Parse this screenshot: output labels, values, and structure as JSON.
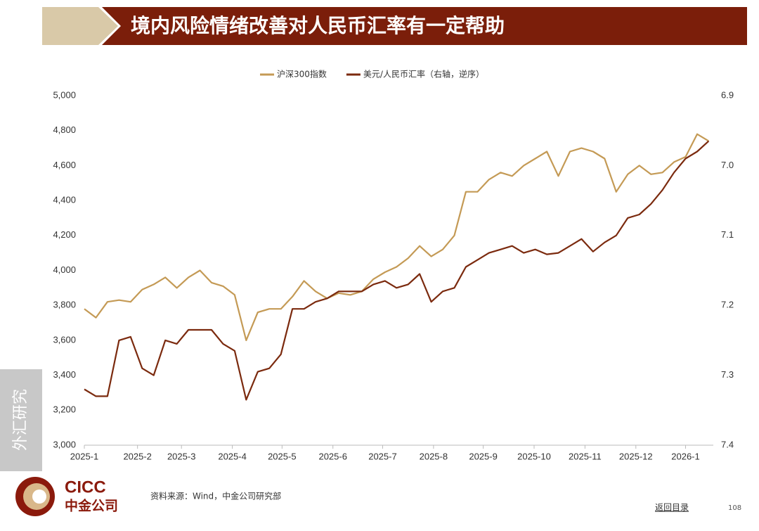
{
  "header": {
    "title": "境内风险情绪改善对人民币汇率有一定帮助"
  },
  "sidebar": {
    "label": "外汇研究"
  },
  "footer": {
    "logo_en": "CICC",
    "logo_cn": "中金公司",
    "source": "资料来源：Wind，中金公司研究部",
    "back_link": "返回目录",
    "page_number": "108"
  },
  "chart_data": {
    "type": "line",
    "xlim": [
      0,
      54.4
    ],
    "xticks": [
      {
        "value": 0,
        "label": "2025-1"
      },
      {
        "value": 4.6,
        "label": "2025-2"
      },
      {
        "value": 8.4,
        "label": "2025-3"
      },
      {
        "value": 12.8,
        "label": "2025-4"
      },
      {
        "value": 17.1,
        "label": "2025-5"
      },
      {
        "value": 21.5,
        "label": "2025-6"
      },
      {
        "value": 25.8,
        "label": "2025-7"
      },
      {
        "value": 30.2,
        "label": "2025-8"
      },
      {
        "value": 34.5,
        "label": "2025-9"
      },
      {
        "value": 38.9,
        "label": "2025-10"
      },
      {
        "value": 43.3,
        "label": "2025-11"
      },
      {
        "value": 47.7,
        "label": "2025-12"
      },
      {
        "value": 52,
        "label": "2026-1"
      }
    ],
    "ylim": [
      3000,
      5000
    ],
    "yticks": [
      {
        "value": 3000,
        "label": "3,000"
      },
      {
        "value": 3200,
        "label": "3,200"
      },
      {
        "value": 3400,
        "label": "3,400"
      },
      {
        "value": 3600,
        "label": "3,600"
      },
      {
        "value": 3800,
        "label": "3,800"
      },
      {
        "value": 4000,
        "label": "4,000"
      },
      {
        "value": 4200,
        "label": "4,200"
      },
      {
        "value": 4400,
        "label": "4,400"
      },
      {
        "value": 4600,
        "label": "4,600"
      },
      {
        "value": 4800,
        "label": "4,800"
      },
      {
        "value": 5000,
        "label": "5,000"
      }
    ],
    "y2lim": [
      7.4,
      6.9
    ],
    "y2ticks": [
      7.4,
      7.3,
      7.2,
      7.1,
      {
        "value": 7,
        "label": "7.0"
      },
      6.9
    ],
    "grid": false,
    "legend": "top",
    "series": [
      {
        "name": "沪深300指数",
        "color": "#c49a55",
        "values": [
          3780,
          3730,
          3820,
          3830,
          3820,
          3890,
          3920,
          3960,
          3900,
          3960,
          4000,
          3930,
          3910,
          3860,
          3600,
          3760,
          3780,
          3780,
          3850,
          3940,
          3880,
          3840,
          3870,
          3860,
          3880,
          3950,
          3990,
          4020,
          4070,
          4140,
          4080,
          4120,
          4200,
          4450,
          4450,
          4520,
          4560,
          4540,
          4600,
          4640,
          4680,
          4540,
          4680,
          4700,
          4680,
          4640,
          4450,
          4550,
          4600,
          4550,
          4560,
          4620,
          4650,
          4780,
          4740
        ]
      },
      {
        "name": "美元/人民币汇率（右轴，逆序）",
        "color": "#7b2a0e",
        "axis": "y2",
        "values": [
          7.32,
          7.33,
          7.33,
          7.25,
          7.245,
          7.29,
          7.3,
          7.25,
          7.255,
          7.235,
          7.235,
          7.235,
          7.255,
          7.265,
          7.335,
          7.295,
          7.29,
          7.27,
          7.205,
          7.205,
          7.195,
          7.19,
          7.18,
          7.18,
          7.18,
          7.17,
          7.165,
          7.175,
          7.17,
          7.155,
          7.195,
          7.18,
          7.175,
          7.145,
          7.135,
          7.125,
          7.12,
          7.115,
          7.125,
          7.12,
          7.127,
          7.125,
          7.115,
          7.105,
          7.123,
          7.11,
          7.1,
          7.075,
          7.07,
          7.055,
          7.035,
          7.01,
          6.99,
          6.98,
          6.965
        ]
      }
    ]
  }
}
